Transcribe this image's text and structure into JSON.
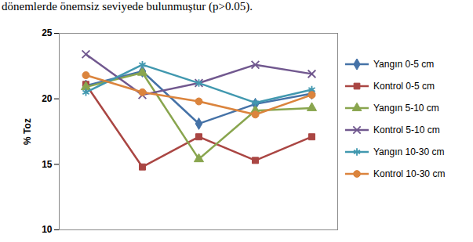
{
  "chart_data": {
    "type": "line",
    "title": "dönemlerde önemsiz seviyede bulunmuştur (p>0.05).",
    "y_label": "% Toz",
    "categories": [
      null,
      null,
      null,
      null,
      null
    ],
    "ylim": [
      10,
      25
    ],
    "yticks": [
      10,
      15,
      20,
      25
    ],
    "grid": false,
    "legend": "right",
    "tick_labels": "y",
    "series": [
      {
        "name": "Yangın 0-5 cm",
        "color": "#4572A7",
        "marker": "diamond",
        "values": [
          21.0,
          22.1,
          18.1,
          19.6,
          20.4
        ]
      },
      {
        "name": "Kontrol 0-5 cm",
        "color": "#AA4643",
        "marker": "square",
        "values": [
          21.1,
          14.8,
          17.1,
          15.3,
          17.1
        ]
      },
      {
        "name": "Yangın 5-10 cm",
        "color": "#89A54E",
        "marker": "triangle",
        "values": [
          20.9,
          22.0,
          15.4,
          19.1,
          19.3
        ]
      },
      {
        "name": "Kontrol 5-10 cm",
        "color": "#71588F",
        "marker": "x",
        "values": [
          23.4,
          20.3,
          21.2,
          22.6,
          21.9
        ]
      },
      {
        "name": "Yangın 10-30 cm",
        "color": "#4198AF",
        "marker": "asterisk",
        "values": [
          20.5,
          22.6,
          21.2,
          19.7,
          20.7
        ]
      },
      {
        "name": "Kontrol 10-30 cm",
        "color": "#DB843D",
        "marker": "circle",
        "values": [
          21.8,
          20.5,
          19.8,
          18.8,
          20.3
        ]
      }
    ]
  }
}
